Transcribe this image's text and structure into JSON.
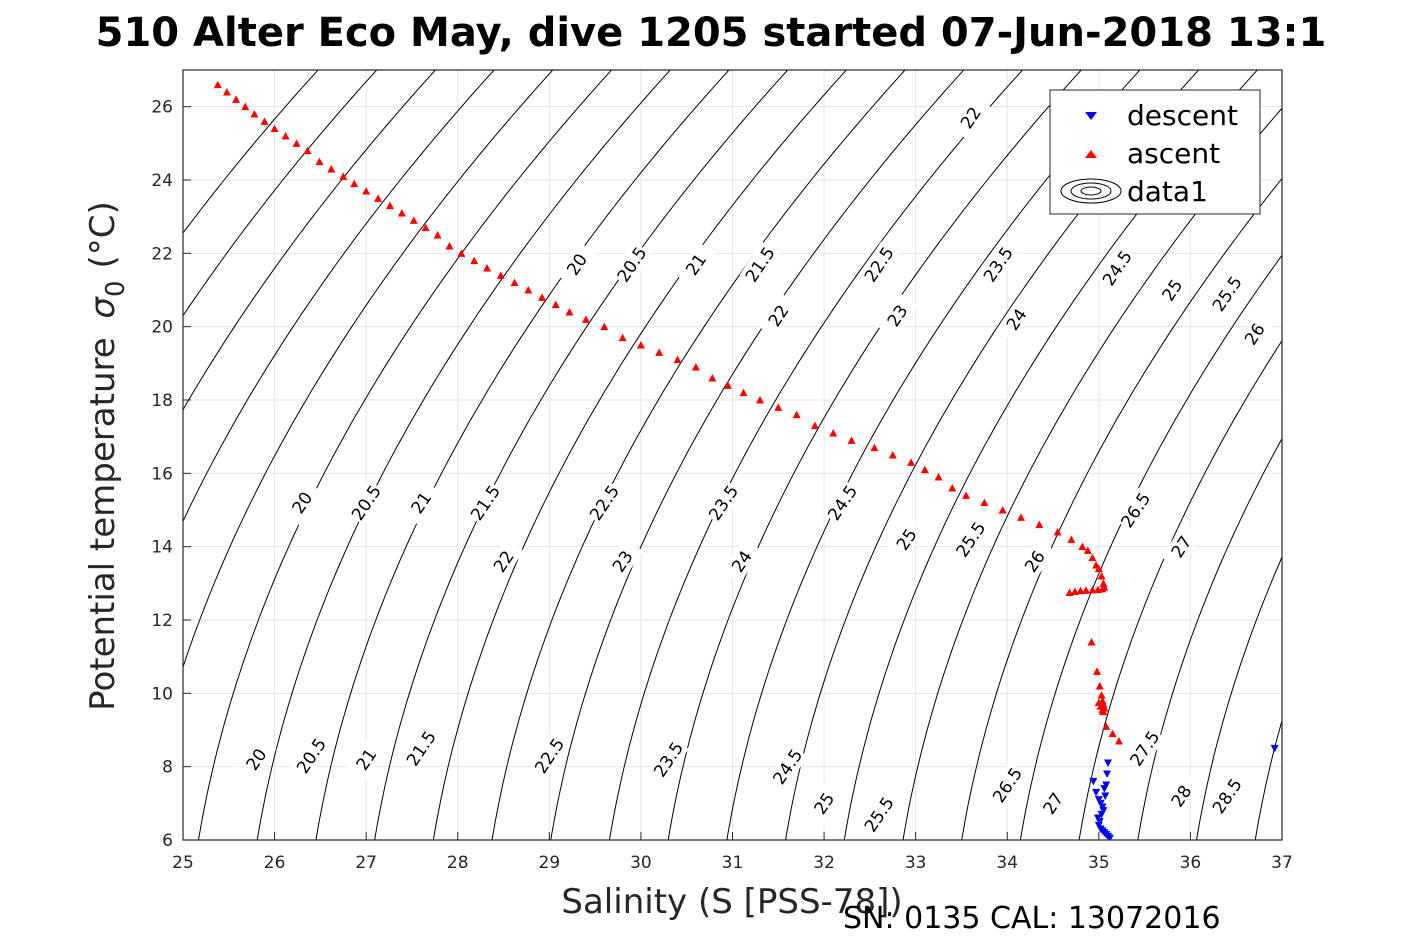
{
  "chart_data": {
    "type": "scatter",
    "title": "510 Alter Eco May, dive 1205 started 07-Jun-2018 13:1",
    "xlabel": "Salinity (S [PSS-78])",
    "ylabel": "Potential temperature",
    "ylabel_symbol": "σ",
    "ylabel_sub": "0",
    "ylabel_unit": "(°C)",
    "xlim": [
      25,
      37
    ],
    "ylim": [
      6,
      27
    ],
    "xticks": [
      25,
      26,
      27,
      28,
      29,
      30,
      31,
      32,
      33,
      34,
      35,
      36,
      37
    ],
    "yticks": [
      6,
      8,
      10,
      12,
      14,
      16,
      18,
      20,
      22,
      24,
      26
    ],
    "grid": true,
    "legend_position": "top-right",
    "colors": {
      "descent": "#0000ff",
      "ascent": "#ff0000",
      "contour": "#000000",
      "grid": "#e6e6e6"
    },
    "density_contours": {
      "levels": [
        20,
        20.5,
        21,
        21.5,
        22,
        22.5,
        23,
        23.5,
        24,
        24.5,
        25,
        25.5,
        26,
        26.5,
        27,
        27.5,
        28,
        28.5
      ],
      "labels": [
        {
          "text": "20",
          "s": 26.3,
          "t": 15.2
        },
        {
          "text": "20.5",
          "s": 27.0,
          "t": 15.2
        },
        {
          "text": "21",
          "s": 27.6,
          "t": 15.2
        },
        {
          "text": "21.5",
          "s": 28.3,
          "t": 15.2
        },
        {
          "text": "22.5",
          "s": 29.6,
          "t": 15.2
        },
        {
          "text": "23.5",
          "s": 30.9,
          "t": 15.2
        },
        {
          "text": "24.5",
          "s": 32.2,
          "t": 15.2
        },
        {
          "text": "25",
          "s": 32.9,
          "t": 14.2
        },
        {
          "text": "25.5",
          "s": 33.6,
          "t": 14.2
        },
        {
          "text": "26",
          "s": 34.3,
          "t": 13.6
        },
        {
          "text": "26.5",
          "s": 35.4,
          "t": 15.0
        },
        {
          "text": "27",
          "s": 35.9,
          "t": 14.0
        },
        {
          "text": "22",
          "s": 28.5,
          "t": 13.6
        },
        {
          "text": "23",
          "s": 29.8,
          "t": 13.6
        },
        {
          "text": "24",
          "s": 31.1,
          "t": 13.6
        },
        {
          "text": "20",
          "s": 29.3,
          "t": 21.7
        },
        {
          "text": "20.5",
          "s": 29.9,
          "t": 21.7
        },
        {
          "text": "21",
          "s": 30.6,
          "t": 21.7
        },
        {
          "text": "21.5",
          "s": 31.3,
          "t": 21.7
        },
        {
          "text": "22.5",
          "s": 32.6,
          "t": 21.7
        },
        {
          "text": "23.5",
          "s": 33.9,
          "t": 21.7
        },
        {
          "text": "24.5",
          "s": 35.2,
          "t": 21.6
        },
        {
          "text": "25",
          "s": 35.8,
          "t": 21.0
        },
        {
          "text": "25.5",
          "s": 36.4,
          "t": 20.9
        },
        {
          "text": "26",
          "s": 36.7,
          "t": 19.8
        },
        {
          "text": "22",
          "s": 31.5,
          "t": 20.3
        },
        {
          "text": "23",
          "s": 32.8,
          "t": 20.3
        },
        {
          "text": "24",
          "s": 34.1,
          "t": 20.2
        },
        {
          "text": "22",
          "s": 33.6,
          "t": 25.7
        },
        {
          "text": "20",
          "s": 25.8,
          "t": 8.2
        },
        {
          "text": "20.5",
          "s": 26.4,
          "t": 8.3
        },
        {
          "text": "21",
          "s": 27.0,
          "t": 8.2
        },
        {
          "text": "21.5",
          "s": 27.6,
          "t": 8.5
        },
        {
          "text": "22.5",
          "s": 29.0,
          "t": 8.3
        },
        {
          "text": "23.5",
          "s": 30.3,
          "t": 8.2
        },
        {
          "text": "24.5",
          "s": 31.6,
          "t": 8.0
        },
        {
          "text": "25",
          "s": 32.0,
          "t": 7.0
        },
        {
          "text": "25.5",
          "s": 32.6,
          "t": 6.7
        },
        {
          "text": "26.5",
          "s": 34.0,
          "t": 7.5
        },
        {
          "text": "27",
          "s": 34.5,
          "t": 7.0
        },
        {
          "text": "27.5",
          "s": 35.5,
          "t": 8.5
        },
        {
          "text": "28",
          "s": 35.9,
          "t": 7.2
        },
        {
          "text": "28.5",
          "s": 36.4,
          "t": 7.2
        }
      ]
    },
    "series": [
      {
        "name": "descent",
        "marker": "triangle-down",
        "x": [
          34.94,
          34.97,
          35.0,
          35.02,
          35.04,
          35.05,
          35.07,
          35.08,
          35.09,
          35.1,
          35.06,
          35.03,
          35.01,
          34.99,
          35.0,
          35.02,
          35.04,
          35.06,
          35.08,
          35.1,
          35.12,
          36.92
        ],
        "y": [
          7.6,
          7.3,
          7.1,
          7.0,
          6.9,
          6.8,
          7.2,
          7.5,
          7.8,
          8.1,
          7.4,
          6.7,
          6.5,
          6.6,
          6.4,
          6.3,
          6.25,
          6.2,
          6.15,
          6.1,
          6.05,
          8.5
        ]
      },
      {
        "name": "ascent",
        "marker": "triangle-up",
        "x": [
          25.38,
          25.48,
          25.58,
          25.68,
          25.78,
          25.89,
          26.0,
          26.12,
          26.24,
          26.36,
          26.49,
          26.62,
          26.75,
          26.87,
          27.0,
          27.13,
          27.26,
          27.39,
          27.52,
          27.65,
          27.78,
          27.91,
          28.04,
          28.18,
          28.32,
          28.47,
          28.62,
          28.77,
          28.92,
          29.07,
          29.22,
          29.4,
          29.6,
          29.8,
          30.0,
          30.2,
          30.4,
          30.6,
          30.78,
          30.95,
          31.12,
          31.3,
          31.5,
          31.7,
          31.9,
          32.1,
          32.3,
          32.55,
          32.75,
          32.95,
          33.1,
          33.25,
          33.4,
          33.55,
          33.75,
          33.95,
          34.15,
          34.35,
          34.55,
          34.7,
          34.82,
          34.88,
          34.93,
          34.97,
          35.0,
          35.03,
          35.05,
          35.06,
          35.04,
          34.99,
          34.93,
          34.86,
          34.8,
          34.74,
          34.68,
          34.92,
          34.98,
          35.01,
          35.03,
          35.04,
          35.05,
          35.06,
          35.05,
          35.04,
          35.02,
          35.0,
          35.08,
          35.15,
          35.22
        ],
        "y": [
          26.6,
          26.4,
          26.2,
          26.0,
          25.8,
          25.6,
          25.4,
          25.2,
          25.0,
          24.8,
          24.5,
          24.3,
          24.1,
          23.9,
          23.7,
          23.5,
          23.3,
          23.1,
          22.9,
          22.7,
          22.5,
          22.2,
          22.0,
          21.8,
          21.6,
          21.4,
          21.2,
          21.0,
          20.8,
          20.6,
          20.4,
          20.2,
          20.0,
          19.7,
          19.5,
          19.3,
          19.1,
          18.9,
          18.6,
          18.4,
          18.2,
          18.0,
          17.8,
          17.6,
          17.3,
          17.1,
          16.9,
          16.7,
          16.5,
          16.3,
          16.1,
          15.9,
          15.6,
          15.4,
          15.2,
          15.0,
          14.8,
          14.6,
          14.4,
          14.2,
          14.0,
          13.9,
          13.7,
          13.5,
          13.4,
          13.2,
          13.0,
          12.9,
          12.85,
          12.83,
          12.82,
          12.81,
          12.8,
          12.78,
          12.75,
          11.4,
          10.6,
          10.2,
          9.95,
          9.8,
          9.7,
          9.6,
          9.5,
          9.55,
          9.65,
          9.75,
          9.1,
          8.9,
          8.7
        ]
      }
    ],
    "legend": [
      "descent",
      "ascent",
      "data1"
    ]
  },
  "footer": {
    "serial": "SN: 0135  CAL: 13072016"
  }
}
